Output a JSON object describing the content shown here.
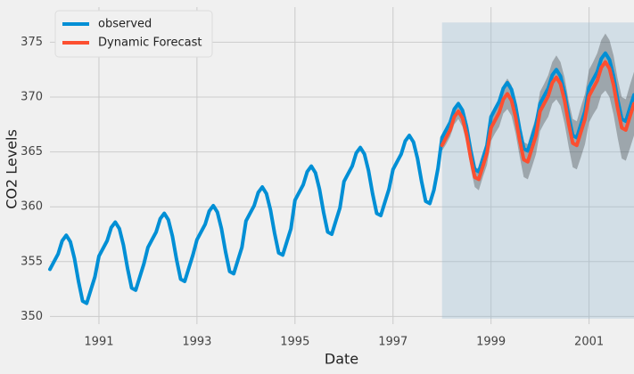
{
  "chart_data": {
    "type": "line",
    "xlabel": "Date",
    "ylabel": "CO2 Levels",
    "xlim": [
      1990,
      2001.917
    ],
    "ylim": [
      349.3,
      378.2
    ],
    "xticks": [
      1991,
      1993,
      1995,
      1997,
      1999,
      2001
    ],
    "yticks": [
      350,
      355,
      360,
      365,
      370,
      375
    ],
    "grid": true,
    "legend": "upper left",
    "highlight": {
      "x": [
        1998.0,
        2001.917
      ],
      "y": [
        349.8,
        376.8
      ],
      "color": "#8fb6cf",
      "opacity": 0.3
    },
    "series": [
      {
        "name": "observed",
        "color": "#008fd5",
        "x": [
          1990.0,
          1990.083,
          1990.167,
          1990.25,
          1990.333,
          1990.417,
          1990.5,
          1990.583,
          1990.667,
          1990.75,
          1990.833,
          1990.917,
          1991.0,
          1991.083,
          1991.167,
          1991.25,
          1991.333,
          1991.417,
          1991.5,
          1991.583,
          1991.667,
          1991.75,
          1991.833,
          1991.917,
          1992.0,
          1992.083,
          1992.167,
          1992.25,
          1992.333,
          1992.417,
          1992.5,
          1992.583,
          1992.667,
          1992.75,
          1992.833,
          1992.917,
          1993.0,
          1993.083,
          1993.167,
          1993.25,
          1993.333,
          1993.417,
          1993.5,
          1993.583,
          1993.667,
          1993.75,
          1993.833,
          1993.917,
          1994.0,
          1994.083,
          1994.167,
          1994.25,
          1994.333,
          1994.417,
          1994.5,
          1994.583,
          1994.667,
          1994.75,
          1994.833,
          1994.917,
          1995.0,
          1995.083,
          1995.167,
          1995.25,
          1995.333,
          1995.417,
          1995.5,
          1995.583,
          1995.667,
          1995.75,
          1995.833,
          1995.917,
          1996.0,
          1996.083,
          1996.167,
          1996.25,
          1996.333,
          1996.417,
          1996.5,
          1996.583,
          1996.667,
          1996.75,
          1996.833,
          1996.917,
          1997.0,
          1997.083,
          1997.167,
          1997.25,
          1997.333,
          1997.417,
          1997.5,
          1997.583,
          1997.667,
          1997.75,
          1997.833,
          1997.917,
          1998.0,
          1998.083,
          1998.167,
          1998.25,
          1998.333,
          1998.417,
          1998.5,
          1998.583,
          1998.667,
          1998.75,
          1998.833,
          1998.917,
          1999.0,
          1999.083,
          1999.167,
          1999.25,
          1999.333,
          1999.417,
          1999.5,
          1999.583,
          1999.667,
          1999.75,
          1999.833,
          1999.917,
          2000.0,
          2000.083,
          2000.167,
          2000.25,
          2000.333,
          2000.417,
          2000.5,
          2000.583,
          2000.667,
          2000.75,
          2000.833,
          2000.917,
          2001.0,
          2001.083,
          2001.167,
          2001.25,
          2001.333,
          2001.417,
          2001.5,
          2001.583,
          2001.667,
          2001.75,
          2001.833,
          2001.917
        ],
        "values": [
          354.3,
          355.0,
          355.7,
          356.9,
          357.4,
          356.8,
          355.3,
          353.2,
          351.4,
          351.2,
          352.4,
          353.6,
          355.5,
          356.2,
          356.9,
          358.1,
          358.6,
          358.0,
          356.5,
          354.4,
          352.6,
          352.4,
          353.6,
          354.8,
          356.3,
          357.0,
          357.7,
          358.9,
          359.4,
          358.8,
          357.3,
          355.2,
          353.4,
          353.2,
          354.4,
          355.6,
          357.0,
          357.7,
          358.4,
          359.6,
          360.1,
          359.5,
          358.0,
          355.9,
          354.1,
          353.9,
          355.1,
          356.3,
          358.7,
          359.4,
          360.1,
          361.3,
          361.8,
          361.2,
          359.7,
          357.6,
          355.8,
          355.6,
          356.8,
          358.0,
          360.6,
          361.3,
          362.0,
          363.2,
          363.7,
          363.1,
          361.6,
          359.5,
          357.7,
          357.5,
          358.7,
          359.9,
          362.3,
          363.0,
          363.7,
          364.9,
          365.4,
          364.8,
          363.3,
          361.2,
          359.4,
          359.2,
          360.4,
          361.6,
          363.4,
          364.1,
          364.8,
          366.0,
          366.5,
          365.9,
          364.4,
          362.3,
          360.5,
          360.3,
          361.5,
          363.5,
          366.3,
          367.0,
          367.7,
          368.9,
          369.4,
          368.8,
          367.3,
          365.2,
          363.4,
          363.2,
          364.4,
          365.6,
          368.2,
          368.9,
          369.6,
          370.8,
          371.3,
          370.7,
          369.2,
          367.1,
          365.3,
          365.1,
          366.3,
          367.5,
          369.4,
          370.1,
          370.8,
          372.0,
          372.5,
          371.9,
          370.4,
          368.3,
          366.5,
          366.3,
          367.5,
          368.7,
          370.9,
          371.6,
          372.3,
          373.5,
          374.0,
          373.4,
          371.9,
          369.8,
          368.0,
          367.8,
          369.0,
          370.2
        ]
      },
      {
        "name": "Dynamic Forecast",
        "color": "#fc4f30",
        "x": [
          1998.0,
          1998.083,
          1998.167,
          1998.25,
          1998.333,
          1998.417,
          1998.5,
          1998.583,
          1998.667,
          1998.75,
          1998.833,
          1998.917,
          1999.0,
          1999.083,
          1999.167,
          1999.25,
          1999.333,
          1999.417,
          1999.5,
          1999.583,
          1999.667,
          1999.75,
          1999.833,
          1999.917,
          2000.0,
          2000.083,
          2000.167,
          2000.25,
          2000.333,
          2000.417,
          2000.5,
          2000.583,
          2000.667,
          2000.75,
          2000.833,
          2000.917,
          2001.0,
          2001.083,
          2001.167,
          2001.25,
          2001.333,
          2001.417,
          2001.5,
          2001.583,
          2001.667,
          2001.75,
          2001.833,
          2001.917
        ],
        "values": [
          365.6,
          366.3,
          367.0,
          368.2,
          368.7,
          368.1,
          366.6,
          364.5,
          362.7,
          362.5,
          363.7,
          364.9,
          367.2,
          367.9,
          368.6,
          369.8,
          370.3,
          369.7,
          368.2,
          366.1,
          364.3,
          364.1,
          365.3,
          366.5,
          368.7,
          369.4,
          370.1,
          371.3,
          371.8,
          371.2,
          369.7,
          367.6,
          365.8,
          365.6,
          366.8,
          368.0,
          370.1,
          370.8,
          371.5,
          372.7,
          373.2,
          372.6,
          371.1,
          369.0,
          367.2,
          367.0,
          368.2,
          369.4
        ]
      }
    ],
    "interval": {
      "color": "#000000",
      "opacity": 0.25,
      "lower": [
        365.1,
        365.7,
        366.4,
        367.5,
        368.0,
        367.3,
        365.8,
        363.6,
        361.8,
        361.5,
        362.7,
        363.8,
        366.0,
        366.7,
        367.3,
        368.5,
        368.9,
        368.3,
        366.7,
        364.6,
        362.7,
        362.5,
        363.6,
        364.8,
        366.9,
        367.6,
        368.2,
        369.4,
        369.8,
        369.2,
        367.6,
        365.5,
        363.6,
        363.4,
        364.5,
        365.7,
        367.7,
        368.4,
        369.0,
        370.2,
        370.6,
        370.0,
        368.4,
        366.3,
        364.4,
        364.2,
        365.3,
        366.5
      ],
      "upper": [
        366.1,
        366.9,
        367.6,
        368.9,
        369.4,
        368.9,
        367.4,
        365.4,
        363.6,
        363.5,
        364.7,
        366.0,
        368.4,
        369.1,
        369.9,
        371.1,
        371.7,
        371.1,
        369.7,
        367.6,
        365.9,
        365.7,
        367.0,
        368.2,
        370.5,
        371.2,
        372.0,
        373.2,
        373.8,
        373.2,
        371.8,
        369.7,
        368.0,
        367.8,
        369.1,
        370.3,
        372.5,
        373.2,
        374.0,
        375.2,
        375.8,
        375.2,
        373.8,
        371.7,
        370.0,
        369.8,
        371.1,
        372.3
      ]
    }
  }
}
